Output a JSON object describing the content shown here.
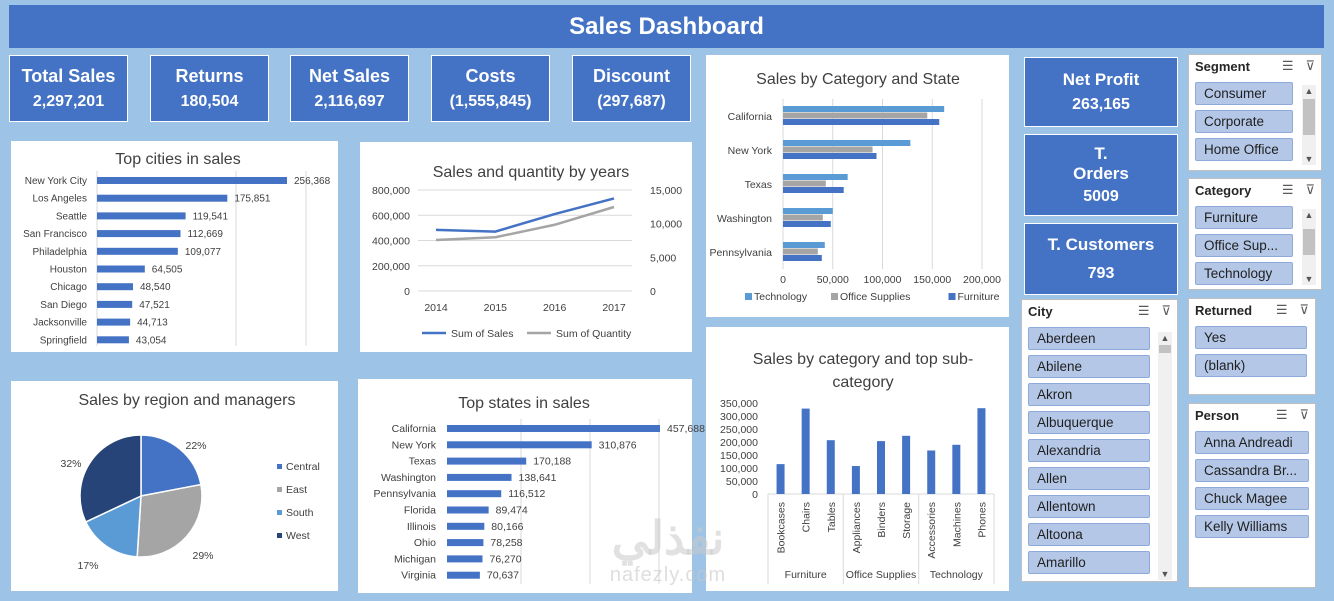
{
  "dashboard": {
    "title": "Sales Dashboard"
  },
  "kpis": [
    {
      "label": "Total Sales",
      "value": "2,297,201"
    },
    {
      "label": "Returns",
      "value": "180,504"
    },
    {
      "label": "Net Sales",
      "value": "2,116,697"
    },
    {
      "label": "Costs",
      "value": "(1,555,845)"
    },
    {
      "label": "Discount",
      "value": "(297,687)"
    }
  ],
  "side_kpis": {
    "net_profit": {
      "label": "Net Profit",
      "value": "263,165"
    },
    "orders": {
      "label_line1": "T.",
      "label_line2": "Orders",
      "value": "5009"
    },
    "customers": {
      "label": "T. Customers",
      "value": "793"
    }
  },
  "slicers": {
    "segment": {
      "title": "Segment",
      "items": [
        "Consumer",
        "Corporate",
        "Home Office"
      ]
    },
    "category": {
      "title": "Category",
      "items": [
        "Furniture",
        "Office Sup...",
        "Technology"
      ]
    },
    "city": {
      "title": "City",
      "items": [
        "Aberdeen",
        "Abilene",
        "Akron",
        "Albuquerque",
        "Alexandria",
        "Allen",
        "Allentown",
        "Altoona",
        "Amarillo"
      ]
    },
    "returned": {
      "title": "Returned",
      "items": [
        "Yes",
        "(blank)"
      ]
    },
    "person": {
      "title": "Person",
      "items": [
        "Anna Andreadi",
        "Cassandra Br...",
        "Chuck Magee",
        "Kelly Williams"
      ]
    }
  },
  "watermark": {
    "arabic": "نفذلي",
    "latin": "nafezly.com"
  },
  "chart_data": [
    {
      "id": "top_cities",
      "type": "bar",
      "orientation": "horizontal",
      "title": "Top cities in sales",
      "categories": [
        "New York City",
        "Los Angeles",
        "Seattle",
        "San Francisco",
        "Philadelphia",
        "Houston",
        "Chicago",
        "San Diego",
        "Jacksonville",
        "Springfield"
      ],
      "values": [
        256368,
        175851,
        119541,
        112669,
        109077,
        64505,
        48540,
        47521,
        44713,
        43054
      ],
      "value_labels": [
        "256,368",
        "175,851",
        "119,541",
        "112,669",
        "109,077",
        "64,505",
        "48,540",
        "47,521",
        "44,713",
        "43,054"
      ],
      "color": "#4472c4"
    },
    {
      "id": "sales_quantity_years",
      "type": "line",
      "title": "Sales and quantity by years",
      "x": [
        "2014",
        "2015",
        "2016",
        "2017"
      ],
      "series": [
        {
          "name": "Sum of Sales",
          "axis": "left",
          "values": [
            484247,
            470533,
            609206,
            733215
          ],
          "color": "#4472c4"
        },
        {
          "name": "Sum of Quantity",
          "axis": "right",
          "values": [
            7581,
            7979,
            9837,
            12476
          ],
          "color": "#a5a5a5"
        }
      ],
      "y_left": {
        "ticks": [
          "0",
          "200,000",
          "400,000",
          "600,000",
          "800,000"
        ],
        "ylim": [
          0,
          800000
        ]
      },
      "y_right": {
        "ticks": [
          "0",
          "5,000",
          "10,000",
          "15,000"
        ],
        "ylim": [
          0,
          15000
        ]
      },
      "legend": "bottom"
    },
    {
      "id": "category_state",
      "type": "bar",
      "orientation": "horizontal",
      "title": "Sales by Category and State",
      "categories": [
        "California",
        "New York",
        "Texas",
        "Washington",
        "Pennsylvania"
      ],
      "series": [
        {
          "name": "Technology",
          "values": [
            162000,
            128000,
            65000,
            50000,
            42000
          ],
          "color": "#5b9bd5"
        },
        {
          "name": "Office Supplies",
          "values": [
            145000,
            90000,
            43000,
            40000,
            35000
          ],
          "color": "#a5a5a5"
        },
        {
          "name": "Furniture",
          "values": [
            157000,
            94000,
            61000,
            48000,
            39000
          ],
          "color": "#4472c4"
        }
      ],
      "x_ticks": [
        "0",
        "50,000",
        "100,000",
        "150,000",
        "200,000"
      ],
      "xlim": [
        0,
        200000
      ],
      "legend": "bottom"
    },
    {
      "id": "region_pie",
      "type": "pie",
      "title": "Sales by region and managers",
      "labels": [
        "Central",
        "East",
        "South",
        "West"
      ],
      "values": [
        22,
        29,
        17,
        32
      ],
      "value_labels": [
        "22%",
        "29%",
        "17%",
        "32%"
      ],
      "colors": [
        "#4472c4",
        "#a5a5a5",
        "#5b9bd5",
        "#264478"
      ],
      "legend": "right"
    },
    {
      "id": "top_states",
      "type": "bar",
      "orientation": "horizontal",
      "title": "Top states in sales",
      "categories": [
        "California",
        "New York",
        "Texas",
        "Washington",
        "Pennsylvania",
        "Florida",
        "Illinois",
        "Ohio",
        "Michigan",
        "Virginia"
      ],
      "values": [
        457688,
        310876,
        170188,
        138641,
        116512,
        89474,
        80166,
        78258,
        76270,
        70637
      ],
      "value_labels": [
        "457,688",
        "310,876",
        "170,188",
        "138,641",
        "116,512",
        "89,474",
        "80,166",
        "78,258",
        "76,270",
        "70,637"
      ],
      "color": "#4472c4"
    },
    {
      "id": "category_subcategory",
      "type": "bar",
      "orientation": "vertical",
      "title": "Sales by category and top sub-category",
      "groups": [
        {
          "name": "Furniture",
          "categories": [
            "Bookcases",
            "Chairs",
            "Tables"
          ],
          "values": [
            114880,
            328449,
            206966
          ]
        },
        {
          "name": "Office Supplies",
          "categories": [
            "Appliances",
            "Binders",
            "Storage"
          ],
          "values": [
            107532,
            203413,
            223844
          ]
        },
        {
          "name": "Technology",
          "categories": [
            "Accessories",
            "Machines",
            "Phones"
          ],
          "values": [
            167380,
            189239,
            330007
          ]
        }
      ],
      "y_ticks": [
        "0",
        "50,000",
        "100,000",
        "150,000",
        "200,000",
        "250,000",
        "300,000",
        "350,000"
      ],
      "ylim": [
        0,
        350000
      ],
      "color": "#4472c4"
    }
  ]
}
